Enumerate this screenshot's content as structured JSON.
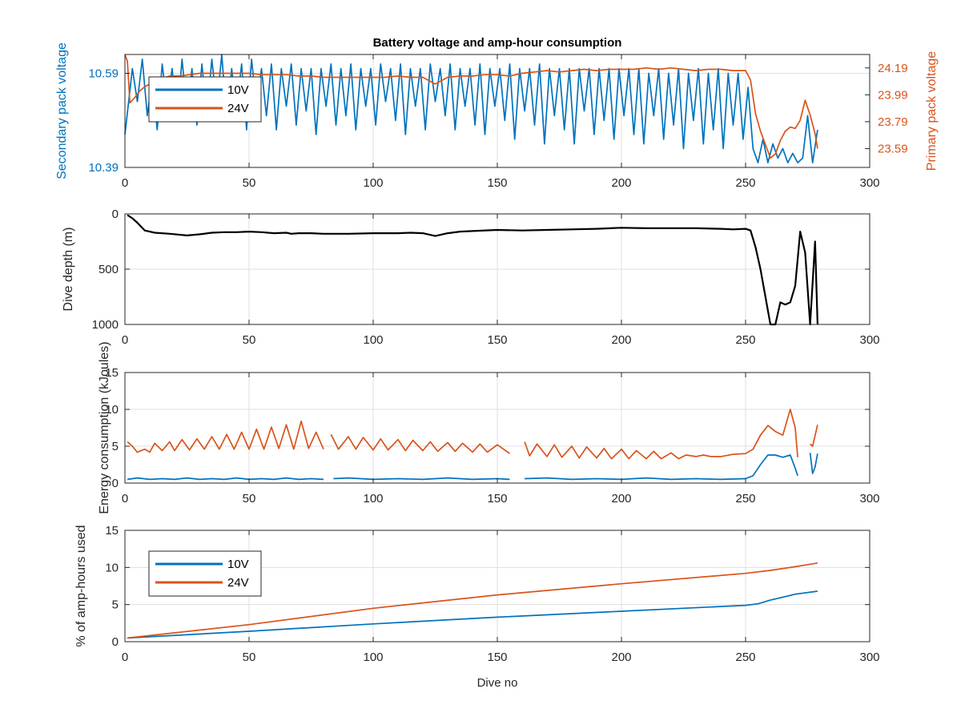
{
  "figure_title": "Battery voltage and amp-hour consumption",
  "colors": {
    "series_10v": "#0072BD",
    "series_24v": "#D95319",
    "depth": "#000000",
    "grid": "#DFDFDF",
    "axes": "#262626"
  },
  "chart_data": [
    {
      "type": "line",
      "title": "Battery voltage and amp-hour consumption",
      "xlabel": "",
      "ylabel": "Secondary pack voltage",
      "ylabel_right": "Primary pack voltage",
      "xlim": [
        0,
        300
      ],
      "ylim": [
        10.39,
        10.63
      ],
      "ylim_right": [
        23.45,
        24.29
      ],
      "xticks": [
        "0",
        "50",
        "100",
        "150",
        "200",
        "250",
        "300"
      ],
      "yticks": [
        "10.39",
        "10.59"
      ],
      "yticks_right": [
        "23.59",
        "23.79",
        "23.99",
        "24.19"
      ],
      "legend": [
        "10V",
        "24V"
      ],
      "legend_position": "top-left",
      "grid": true,
      "series": [
        {
          "name": "10V",
          "axis": "left",
          "x": [
            0,
            3,
            5,
            7,
            9,
            11,
            13,
            15,
            17,
            19,
            21,
            23,
            25,
            27,
            29,
            31,
            33,
            35,
            37,
            39,
            41,
            43,
            45,
            47,
            49,
            51,
            53,
            55,
            57,
            59,
            61,
            63,
            65,
            67,
            69,
            71,
            73,
            75,
            77,
            79,
            81,
            83,
            85,
            87,
            89,
            91,
            93,
            95,
            97,
            99,
            101,
            103,
            105,
            107,
            109,
            111,
            113,
            115,
            117,
            119,
            121,
            123,
            125,
            127,
            129,
            131,
            133,
            135,
            137,
            139,
            141,
            143,
            145,
            147,
            149,
            151,
            153,
            155,
            157,
            159,
            161,
            163,
            165,
            167,
            169,
            171,
            173,
            175,
            177,
            179,
            181,
            183,
            185,
            187,
            189,
            191,
            193,
            195,
            197,
            199,
            201,
            203,
            205,
            207,
            209,
            211,
            213,
            215,
            217,
            219,
            221,
            223,
            225,
            227,
            229,
            231,
            233,
            235,
            237,
            239,
            241,
            243,
            245,
            247,
            249,
            251,
            253,
            255,
            257,
            259,
            261,
            263,
            265,
            267,
            269,
            271,
            273,
            275,
            277,
            279
          ],
          "values": [
            10.46,
            10.6,
            10.53,
            10.62,
            10.5,
            10.58,
            10.47,
            10.61,
            10.52,
            10.6,
            10.49,
            10.62,
            10.51,
            10.6,
            10.48,
            10.61,
            10.5,
            10.62,
            10.52,
            10.63,
            10.49,
            10.6,
            10.51,
            10.61,
            10.47,
            10.62,
            10.52,
            10.6,
            10.5,
            10.61,
            10.47,
            10.6,
            10.52,
            10.61,
            10.48,
            10.6,
            10.51,
            10.6,
            10.46,
            10.6,
            10.52,
            10.61,
            10.48,
            10.6,
            10.5,
            10.61,
            10.47,
            10.6,
            10.52,
            10.6,
            10.48,
            10.61,
            10.53,
            10.6,
            10.49,
            10.61,
            10.46,
            10.6,
            10.52,
            10.6,
            10.47,
            10.61,
            10.53,
            10.6,
            10.5,
            10.61,
            10.47,
            10.6,
            10.52,
            10.6,
            10.48,
            10.61,
            10.46,
            10.6,
            10.52,
            10.6,
            10.49,
            10.61,
            10.45,
            10.6,
            10.51,
            10.6,
            10.48,
            10.61,
            10.44,
            10.6,
            10.5,
            10.6,
            10.47,
            10.6,
            10.44,
            10.6,
            10.51,
            10.6,
            10.46,
            10.6,
            10.49,
            10.6,
            10.45,
            10.6,
            10.5,
            10.6,
            10.46,
            10.6,
            10.44,
            10.59,
            10.5,
            10.6,
            10.45,
            10.59,
            10.48,
            10.6,
            10.43,
            10.59,
            10.49,
            10.6,
            10.44,
            10.59,
            10.47,
            10.6,
            10.43,
            10.59,
            10.48,
            10.59,
            10.45,
            10.56,
            10.43,
            10.4,
            10.45,
            10.4,
            10.44,
            10.41,
            10.43,
            10.4,
            10.42,
            10.4,
            10.41,
            10.5,
            10.4,
            10.47
          ]
        },
        {
          "name": "24V",
          "axis": "right",
          "x": [
            0,
            1,
            2,
            4,
            6,
            8,
            10,
            14,
            18,
            22,
            26,
            30,
            35,
            40,
            45,
            50,
            55,
            60,
            65,
            70,
            75,
            80,
            85,
            90,
            95,
            100,
            105,
            110,
            115,
            120,
            125,
            130,
            135,
            140,
            145,
            150,
            155,
            160,
            165,
            170,
            175,
            180,
            185,
            190,
            195,
            200,
            205,
            210,
            215,
            220,
            225,
            230,
            235,
            240,
            245,
            250,
            252,
            254,
            256,
            258,
            260,
            262,
            264,
            266,
            268,
            270,
            272,
            274,
            276,
            278,
            279
          ],
          "values": [
            24.29,
            24.24,
            23.93,
            23.97,
            24.02,
            24.05,
            24.07,
            24.11,
            24.13,
            24.13,
            24.14,
            24.15,
            24.15,
            24.15,
            24.15,
            24.15,
            24.14,
            24.14,
            24.14,
            24.13,
            24.13,
            24.12,
            24.12,
            24.12,
            24.12,
            24.12,
            24.12,
            24.13,
            24.12,
            24.12,
            24.07,
            24.12,
            24.13,
            24.13,
            24.14,
            24.14,
            24.13,
            24.15,
            24.16,
            24.17,
            24.16,
            24.17,
            24.18,
            24.17,
            24.18,
            24.18,
            24.18,
            24.19,
            24.18,
            24.19,
            24.18,
            24.17,
            24.18,
            24.18,
            24.17,
            24.17,
            24.1,
            23.85,
            23.72,
            23.62,
            23.52,
            23.55,
            23.65,
            23.72,
            23.75,
            23.74,
            23.8,
            23.95,
            23.84,
            23.7,
            23.59
          ]
        }
      ]
    },
    {
      "type": "line",
      "title": "",
      "xlabel": "",
      "ylabel": "Dive depth (m)",
      "xlim": [
        0,
        300
      ],
      "ylim": [
        0,
        1000
      ],
      "y_reversed": true,
      "xticks": [
        "0",
        "50",
        "100",
        "150",
        "200",
        "250",
        "300"
      ],
      "yticks": [
        "0",
        "500",
        "1000"
      ],
      "grid": true,
      "series": [
        {
          "x": [
            1,
            3,
            5,
            8,
            12,
            18,
            25,
            30,
            35,
            40,
            45,
            50,
            55,
            60,
            65,
            67,
            70,
            75,
            80,
            90,
            100,
            110,
            115,
            120,
            125,
            130,
            135,
            140,
            150,
            160,
            170,
            180,
            190,
            200,
            210,
            220,
            230,
            240,
            245,
            250,
            252,
            254,
            256,
            258,
            260,
            262,
            264,
            266,
            268,
            270,
            272,
            274,
            276,
            278,
            279
          ],
          "values": [
            10,
            40,
            80,
            150,
            170,
            180,
            195,
            185,
            170,
            165,
            165,
            160,
            165,
            175,
            170,
            180,
            175,
            175,
            180,
            180,
            175,
            175,
            170,
            175,
            200,
            175,
            160,
            155,
            145,
            150,
            145,
            140,
            135,
            125,
            130,
            130,
            130,
            135,
            140,
            135,
            150,
            300,
            500,
            750,
            1000,
            1000,
            800,
            820,
            800,
            650,
            160,
            350,
            1000,
            250,
            1000
          ]
        }
      ]
    },
    {
      "type": "line",
      "title": "",
      "xlabel": "",
      "ylabel": "Energy consumption (kJoules)",
      "xlim": [
        0,
        300
      ],
      "ylim": [
        0,
        15
      ],
      "xticks": [
        "0",
        "50",
        "100",
        "150",
        "200",
        "250",
        "300"
      ],
      "yticks": [
        "0",
        "5",
        "10",
        "15"
      ],
      "grid": true,
      "series": [
        {
          "name": "10V",
          "x": [
            1,
            5,
            10,
            15,
            20,
            25,
            30,
            35,
            40,
            45,
            50,
            55,
            60,
            65,
            70,
            75,
            80,
            null,
            84,
            90,
            100,
            110,
            120,
            130,
            140,
            150,
            155,
            null,
            161,
            170,
            180,
            190,
            200,
            210,
            220,
            230,
            240,
            250,
            253,
            256,
            259,
            262,
            265,
            268,
            270,
            271,
            null,
            276,
            277,
            278,
            279
          ],
          "values": [
            0.5,
            0.7,
            0.5,
            0.6,
            0.5,
            0.7,
            0.5,
            0.6,
            0.5,
            0.7,
            0.5,
            0.6,
            0.5,
            0.7,
            0.5,
            0.6,
            0.5,
            null,
            0.6,
            0.7,
            0.5,
            0.6,
            0.5,
            0.7,
            0.5,
            0.6,
            0.5,
            null,
            0.6,
            0.7,
            0.5,
            0.6,
            0.5,
            0.7,
            0.5,
            0.6,
            0.5,
            0.6,
            1.0,
            2.5,
            3.8,
            3.8,
            3.5,
            3.8,
            2.0,
            1.0,
            null,
            4.1,
            1.3,
            2.2,
            4.0
          ]
        },
        {
          "name": "24V",
          "x": [
            1,
            3,
            5,
            8,
            10,
            12,
            15,
            18,
            20,
            23,
            26,
            29,
            32,
            35,
            38,
            41,
            44,
            47,
            50,
            53,
            56,
            59,
            62,
            65,
            68,
            71,
            74,
            77,
            80,
            null,
            83,
            86,
            90,
            93,
            96,
            100,
            103,
            106,
            110,
            113,
            116,
            120,
            123,
            126,
            130,
            133,
            136,
            140,
            143,
            146,
            150,
            155,
            null,
            161,
            163,
            166,
            170,
            173,
            176,
            180,
            183,
            186,
            190,
            193,
            196,
            200,
            203,
            206,
            210,
            213,
            216,
            220,
            223,
            226,
            230,
            233,
            236,
            240,
            245,
            250,
            253,
            256,
            259,
            262,
            265,
            268,
            270,
            271,
            null,
            276,
            277,
            279
          ],
          "values": [
            5.6,
            5.0,
            4.2,
            4.6,
            4.2,
            5.4,
            4.4,
            5.6,
            4.4,
            5.9,
            4.5,
            6.0,
            4.6,
            6.3,
            4.6,
            6.6,
            4.6,
            6.9,
            4.6,
            7.3,
            4.6,
            7.6,
            4.7,
            7.9,
            4.6,
            8.4,
            4.7,
            6.9,
            4.6,
            null,
            6.6,
            4.6,
            6.3,
            4.6,
            6.2,
            4.5,
            6.0,
            4.5,
            5.9,
            4.4,
            5.8,
            4.4,
            5.6,
            4.3,
            5.5,
            4.3,
            5.4,
            4.2,
            5.3,
            4.2,
            5.2,
            4.0,
            null,
            5.6,
            3.7,
            5.3,
            3.6,
            5.2,
            3.5,
            5.0,
            3.4,
            4.9,
            3.4,
            4.7,
            3.3,
            4.6,
            3.3,
            4.4,
            3.3,
            4.3,
            3.3,
            4.1,
            3.3,
            3.8,
            3.6,
            3.8,
            3.6,
            3.6,
            3.9,
            4.0,
            4.6,
            6.5,
            7.8,
            7.0,
            6.5,
            10.0,
            7.5,
            3.5,
            null,
            5.3,
            5.0,
            7.9
          ]
        }
      ]
    },
    {
      "type": "line",
      "title": "",
      "xlabel": "Dive no",
      "ylabel": "% of amp-hours used",
      "xlim": [
        0,
        300
      ],
      "ylim": [
        0,
        15
      ],
      "xticks": [
        "0",
        "50",
        "100",
        "150",
        "200",
        "250",
        "300"
      ],
      "yticks": [
        "0",
        "5",
        "10",
        "15"
      ],
      "legend": [
        "10V",
        "24V"
      ],
      "legend_position": "top-left",
      "grid": true,
      "series": [
        {
          "name": "10V",
          "x": [
            1,
            50,
            100,
            150,
            200,
            250,
            255,
            260,
            265,
            270,
            279
          ],
          "values": [
            0.5,
            1.4,
            2.4,
            3.3,
            4.1,
            4.9,
            5.1,
            5.6,
            6.0,
            6.4,
            6.8
          ]
        },
        {
          "name": "24V",
          "x": [
            1,
            50,
            100,
            150,
            200,
            250,
            260,
            270,
            279
          ],
          "values": [
            0.5,
            2.3,
            4.5,
            6.3,
            7.8,
            9.2,
            9.6,
            10.1,
            10.6
          ]
        }
      ]
    }
  ]
}
